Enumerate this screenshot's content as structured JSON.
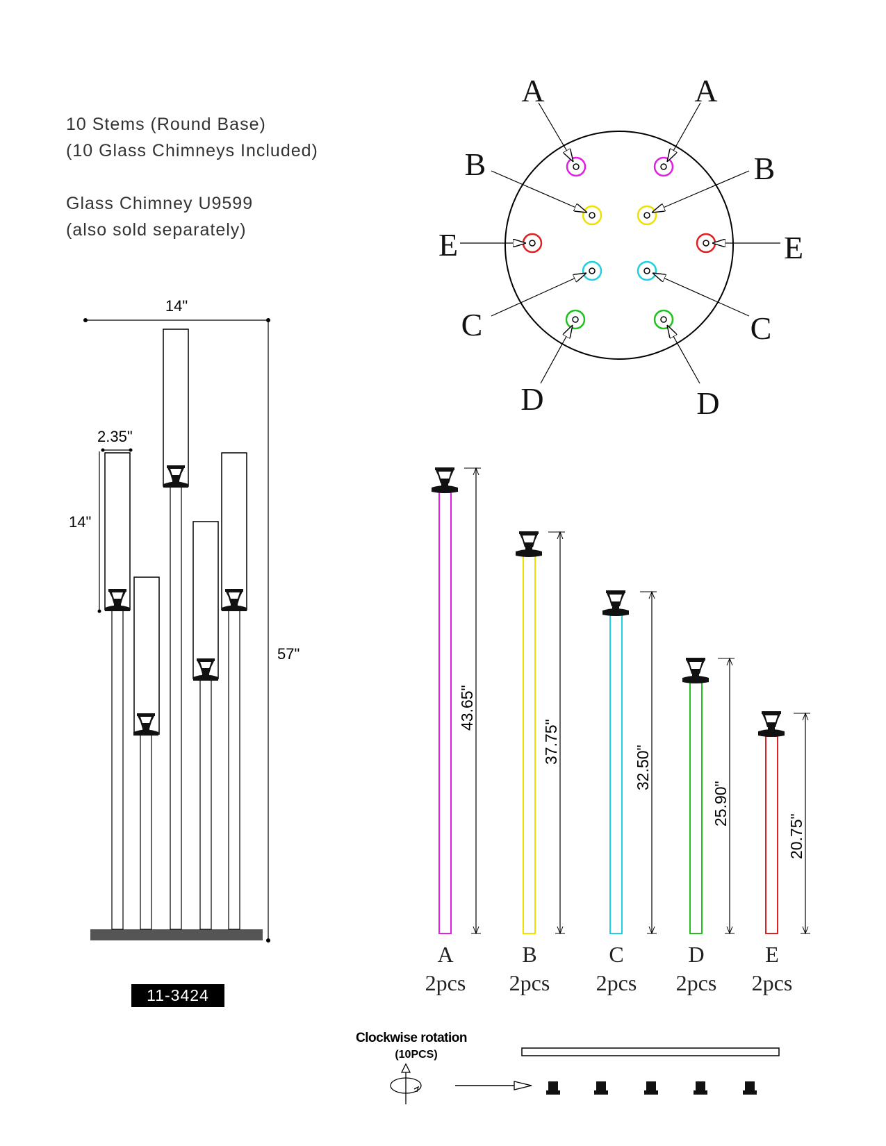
{
  "header": {
    "line1": "10 Stems (Round Base)",
    "line2": "(10 Glass Chimneys Included)",
    "line3": "Glass Chimney U9599",
    "line4": "(also sold separately)"
  },
  "product_code": "11-3424",
  "side_view": {
    "width_label": "14\"",
    "height_label": "57\"",
    "chimney_diameter_label": "2.35\"",
    "chimney_height_label": "14\""
  },
  "top_view": {
    "positions": [
      {
        "label": "A",
        "color": "#e020e0"
      },
      {
        "label": "A",
        "color": "#e020e0"
      },
      {
        "label": "B",
        "color": "#f0e000"
      },
      {
        "label": "B",
        "color": "#f0e000"
      },
      {
        "label": "E",
        "color": "#e02020"
      },
      {
        "label": "E",
        "color": "#e02020"
      },
      {
        "label": "C",
        "color": "#20d0e0"
      },
      {
        "label": "C",
        "color": "#20d0e0"
      },
      {
        "label": "D",
        "color": "#20c020"
      },
      {
        "label": "D",
        "color": "#20c020"
      }
    ]
  },
  "stems": [
    {
      "label": "A",
      "qty": "2pcs",
      "length": "43.65\"",
      "color": "#e020e0"
    },
    {
      "label": "B",
      "qty": "2pcs",
      "length": "37.75\"",
      "color": "#f0e000"
    },
    {
      "label": "C",
      "qty": "2pcs",
      "length": "32.50\"",
      "color": "#20d0e0"
    },
    {
      "label": "D",
      "qty": "2pcs",
      "length": "25.90\"",
      "color": "#20c020"
    },
    {
      "label": "E",
      "qty": "2pcs",
      "length": "20.75\"",
      "color": "#e02020"
    }
  ],
  "assembly": {
    "rotation_label": "Clockwise rotation",
    "count_label": "(10PCS)"
  }
}
